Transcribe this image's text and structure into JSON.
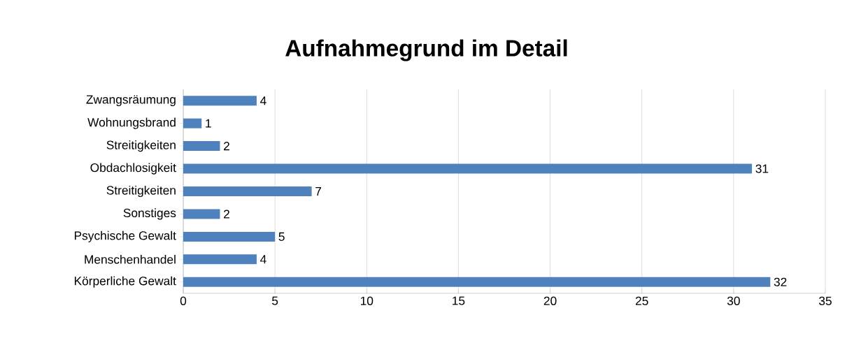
{
  "chart_data": {
    "type": "bar",
    "orientation": "horizontal",
    "title": "Aufnahmegrund im Detail",
    "categories": [
      "Zwangsräumung",
      "Wohnungsbrand",
      "Streitigkeiten",
      "Obdachlosigkeit",
      "Streitigkeiten",
      "Sonstiges",
      "Psychische Gewalt",
      "Menschenhandel",
      "Körperliche Gewalt"
    ],
    "values": [
      4,
      1,
      2,
      31,
      7,
      2,
      5,
      4,
      32
    ],
    "color": "#4f81bd",
    "xlim": [
      0,
      35
    ],
    "xticks": [
      0,
      5,
      10,
      15,
      20,
      25,
      30,
      35
    ],
    "grid": "x",
    "data_labels": true
  }
}
